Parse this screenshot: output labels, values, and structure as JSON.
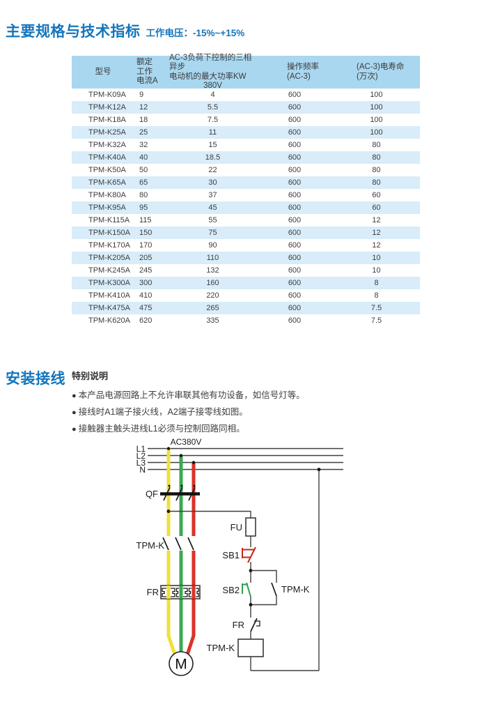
{
  "colors": {
    "accent_blue": "#1475bc",
    "table_header_blue": "#a9d7f0",
    "table_row_alt_blue": "#d8ecf9",
    "phase_l1_yellow": "#f1df3c",
    "phase_l2_green": "#3aa953",
    "phase_l3_red": "#dd3227",
    "stop_button_red": "#c6271d",
    "start_button_green": "#2da14b"
  },
  "page": {
    "section1_title": "主要规格与技术指标",
    "section1_subtitle": "工作电压：-15%~+15%",
    "section2_title": "安装接线",
    "notes_title": "特别说明",
    "notes": [
      "本产品电源回路上不允许串联其他有功设备，如信号灯等。",
      "接线时A1端子接火线，A2端子接零线如图。",
      "接触器主触头进线L1必须与控制回路同相。"
    ]
  },
  "table": {
    "headers": {
      "model": "型号",
      "current_lines": [
        "额定",
        "工作",
        "电流A"
      ],
      "power_line1": "AC-3负荷下控制的三相异步",
      "power_line2": "电动机的最大功率KW",
      "power_line3": "380V",
      "freq_line1": "操作频率",
      "freq_line2": "(AC-3)",
      "life_line1": "(AC-3)电寿命",
      "life_line2": "(万次)"
    },
    "rows": [
      {
        "model": "TPM-K09A",
        "current": "9",
        "power": "4",
        "freq": "600",
        "life": "100"
      },
      {
        "model": "TPM-K12A",
        "current": "12",
        "power": "5.5",
        "freq": "600",
        "life": "100"
      },
      {
        "model": "TPM-K18A",
        "current": "18",
        "power": "7.5",
        "freq": "600",
        "life": "100"
      },
      {
        "model": "TPM-K25A",
        "current": "25",
        "power": "11",
        "freq": "600",
        "life": "100"
      },
      {
        "model": "TPM-K32A",
        "current": "32",
        "power": "15",
        "freq": "600",
        "life": "80"
      },
      {
        "model": "TPM-K40A",
        "current": "40",
        "power": "18.5",
        "freq": "600",
        "life": "80"
      },
      {
        "model": "TPM-K50A",
        "current": "50",
        "power": "22",
        "freq": "600",
        "life": "80"
      },
      {
        "model": "TPM-K65A",
        "current": "65",
        "power": "30",
        "freq": "600",
        "life": "80"
      },
      {
        "model": "TPM-K80A",
        "current": "80",
        "power": "37",
        "freq": "600",
        "life": "60"
      },
      {
        "model": "TPM-K95A",
        "current": "95",
        "power": "45",
        "freq": "600",
        "life": "60"
      },
      {
        "model": "TPM-K115A",
        "current": "115",
        "power": "55",
        "freq": "600",
        "life": "12"
      },
      {
        "model": "TPM-K150A",
        "current": "150",
        "power": "75",
        "freq": "600",
        "life": "12"
      },
      {
        "model": "TPM-K170A",
        "current": "170",
        "power": "90",
        "freq": "600",
        "life": "12"
      },
      {
        "model": "TPM-K205A",
        "current": "205",
        "power": "110",
        "freq": "600",
        "life": "10"
      },
      {
        "model": "TPM-K245A",
        "current": "245",
        "power": "132",
        "freq": "600",
        "life": "10"
      },
      {
        "model": "TPM-K300A",
        "current": "300",
        "power": "160",
        "freq": "600",
        "life": "8"
      },
      {
        "model": "TPM-K410A",
        "current": "410",
        "power": "220",
        "freq": "600",
        "life": "8"
      },
      {
        "model": "TPM-K475A",
        "current": "475",
        "power": "265",
        "freq": "600",
        "life": "7.5"
      },
      {
        "model": "TPM-K620A",
        "current": "620",
        "power": "335",
        "freq": "600",
        "life": "7.5"
      }
    ]
  },
  "diagram": {
    "labels": {
      "ac380v": "AC380V",
      "l1": "L1",
      "l2": "L2",
      "l3": "L3",
      "n": "N",
      "qf": "QF",
      "fu": "FU",
      "sb1": "SB1",
      "sb2": "SB2",
      "tpmk_main": "TPM-K",
      "tpmk_aux": "TPM-K",
      "fr_main": "FR",
      "fr_ctrl": "FR",
      "tpmk_coil": "TPM-K",
      "motor": "M"
    }
  }
}
